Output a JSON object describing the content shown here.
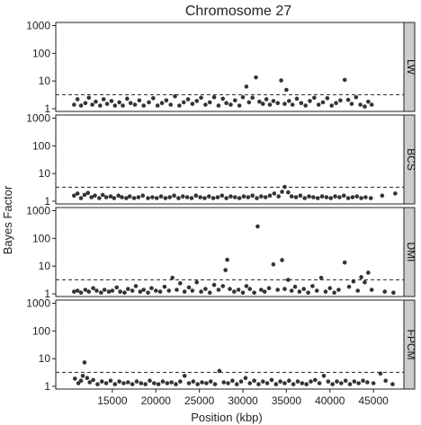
{
  "chart_data": {
    "type": "scatter",
    "title": "Chromosome 27",
    "xlabel": "Position (kbp)",
    "ylabel": "Bayes Factor",
    "y_scale": "log",
    "xlim": [
      8500,
      48500
    ],
    "ylim": [
      0.8,
      1300
    ],
    "x_ticks": [
      15000,
      20000,
      25000,
      30000,
      35000,
      40000,
      45000
    ],
    "y_ticks": [
      1,
      10,
      100,
      1000
    ],
    "threshold": 3.2,
    "grid": false,
    "point_color": "#333333",
    "strip_color": "#cccccc",
    "panels": [
      {
        "name": "LW",
        "points": [
          [
            10600,
            1.4
          ],
          [
            11000,
            2.2
          ],
          [
            11400,
            1.3
          ],
          [
            11900,
            1.6
          ],
          [
            12300,
            2.5
          ],
          [
            12700,
            1.4
          ],
          [
            13100,
            1.8
          ],
          [
            13600,
            1.3
          ],
          [
            14000,
            2.2
          ],
          [
            14400,
            1.5
          ],
          [
            14900,
            1.9
          ],
          [
            15300,
            1.3
          ],
          [
            15800,
            1.7
          ],
          [
            16200,
            1.3
          ],
          [
            16700,
            2.3
          ],
          [
            17100,
            1.6
          ],
          [
            17600,
            1.4
          ],
          [
            18100,
            2.0
          ],
          [
            18600,
            1.3
          ],
          [
            19200,
            1.7
          ],
          [
            19700,
            2.4
          ],
          [
            20200,
            1.3
          ],
          [
            20700,
            1.6
          ],
          [
            21200,
            2.0
          ],
          [
            21700,
            1.4
          ],
          [
            22200,
            2.8
          ],
          [
            22700,
            1.3
          ],
          [
            23200,
            1.7
          ],
          [
            23700,
            2.2
          ],
          [
            24200,
            1.5
          ],
          [
            24700,
            1.9
          ],
          [
            25200,
            2.5
          ],
          [
            25700,
            1.4
          ],
          [
            26200,
            1.7
          ],
          [
            26700,
            2.6
          ],
          [
            27200,
            1.3
          ],
          [
            27700,
            2.3
          ],
          [
            28100,
            1.6
          ],
          [
            28600,
            1.4
          ],
          [
            29100,
            2.0
          ],
          [
            29600,
            1.3
          ],
          [
            30000,
            2.6
          ],
          [
            30400,
            6.3
          ],
          [
            30700,
            1.7
          ],
          [
            31100,
            2.5
          ],
          [
            31500,
            13.5
          ],
          [
            31900,
            1.8
          ],
          [
            32300,
            1.5
          ],
          [
            32700,
            2.2
          ],
          [
            33100,
            1.4
          ],
          [
            33500,
            1.9
          ],
          [
            34000,
            1.6
          ],
          [
            34400,
            10.5
          ],
          [
            34800,
            1.5
          ],
          [
            35000,
            4.8
          ],
          [
            35300,
            1.9
          ],
          [
            35700,
            1.4
          ],
          [
            36200,
            2.3
          ],
          [
            36700,
            1.6
          ],
          [
            37200,
            1.3
          ],
          [
            37700,
            1.9
          ],
          [
            38200,
            2.5
          ],
          [
            38700,
            1.4
          ],
          [
            39200,
            1.7
          ],
          [
            39700,
            2.4
          ],
          [
            40200,
            1.3
          ],
          [
            40700,
            1.6
          ],
          [
            41200,
            2.0
          ],
          [
            41700,
            11.0
          ],
          [
            42100,
            2.1
          ],
          [
            42500,
            1.5
          ],
          [
            43000,
            2.6
          ],
          [
            43500,
            1.4
          ],
          [
            44000,
            1.2
          ],
          [
            44400,
            1.8
          ],
          [
            44800,
            1.4
          ]
        ]
      },
      {
        "name": "BCS",
        "points": [
          [
            10600,
            1.6
          ],
          [
            11000,
            1.9
          ],
          [
            11400,
            1.3
          ],
          [
            11800,
            1.7
          ],
          [
            12200,
            2.0
          ],
          [
            12600,
            1.4
          ],
          [
            13000,
            1.6
          ],
          [
            13500,
            1.3
          ],
          [
            13900,
            1.7
          ],
          [
            14300,
            1.4
          ],
          [
            14800,
            1.5
          ],
          [
            15200,
            1.3
          ],
          [
            15700,
            1.6
          ],
          [
            16100,
            1.4
          ],
          [
            16600,
            1.3
          ],
          [
            17000,
            1.5
          ],
          [
            17500,
            1.3
          ],
          [
            18000,
            1.4
          ],
          [
            18500,
            1.6
          ],
          [
            19100,
            1.3
          ],
          [
            19600,
            1.4
          ],
          [
            20100,
            1.3
          ],
          [
            20600,
            1.5
          ],
          [
            21100,
            1.3
          ],
          [
            21600,
            1.4
          ],
          [
            22100,
            1.6
          ],
          [
            22600,
            1.3
          ],
          [
            23100,
            1.5
          ],
          [
            23600,
            1.4
          ],
          [
            24100,
            1.3
          ],
          [
            24600,
            1.6
          ],
          [
            25100,
            1.4
          ],
          [
            25600,
            1.3
          ],
          [
            26100,
            1.5
          ],
          [
            26600,
            1.3
          ],
          [
            27100,
            1.4
          ],
          [
            27600,
            1.6
          ],
          [
            28100,
            1.3
          ],
          [
            28600,
            1.5
          ],
          [
            29100,
            1.4
          ],
          [
            29600,
            1.3
          ],
          [
            30100,
            1.5
          ],
          [
            30600,
            1.4
          ],
          [
            31100,
            1.6
          ],
          [
            31600,
            1.3
          ],
          [
            32100,
            1.5
          ],
          [
            32600,
            1.4
          ],
          [
            33100,
            1.6
          ],
          [
            33600,
            1.9
          ],
          [
            34100,
            1.5
          ],
          [
            34500,
            2.2
          ],
          [
            34800,
            3.3
          ],
          [
            35200,
            2.1
          ],
          [
            35600,
            1.5
          ],
          [
            36100,
            1.4
          ],
          [
            36600,
            1.6
          ],
          [
            37100,
            1.3
          ],
          [
            37600,
            1.5
          ],
          [
            38100,
            1.4
          ],
          [
            38600,
            1.3
          ],
          [
            39100,
            1.5
          ],
          [
            39600,
            1.4
          ],
          [
            40100,
            1.3
          ],
          [
            40600,
            1.5
          ],
          [
            41100,
            1.4
          ],
          [
            41600,
            1.6
          ],
          [
            42100,
            1.3
          ],
          [
            42600,
            1.4
          ],
          [
            43100,
            1.5
          ],
          [
            43600,
            1.3
          ],
          [
            44100,
            1.4
          ],
          [
            44700,
            1.3
          ],
          [
            46000,
            1.6
          ],
          [
            47500,
            1.9
          ]
        ]
      },
      {
        "name": "DMI",
        "points": [
          [
            10600,
            1.2
          ],
          [
            11000,
            1.3
          ],
          [
            11400,
            1.1
          ],
          [
            11900,
            1.4
          ],
          [
            12300,
            1.2
          ],
          [
            12800,
            1.6
          ],
          [
            13200,
            1.3
          ],
          [
            13700,
            1.1
          ],
          [
            14100,
            1.4
          ],
          [
            14600,
            1.2
          ],
          [
            15000,
            1.3
          ],
          [
            15500,
            1.7
          ],
          [
            15900,
            1.2
          ],
          [
            16400,
            1.1
          ],
          [
            16800,
            1.5
          ],
          [
            17300,
            1.3
          ],
          [
            17700,
            1.9
          ],
          [
            18200,
            1.2
          ],
          [
            18600,
            1.4
          ],
          [
            19100,
            1.1
          ],
          [
            19500,
            1.6
          ],
          [
            20000,
            1.3
          ],
          [
            20500,
            1.2
          ],
          [
            21000,
            1.8
          ],
          [
            21500,
            1.3
          ],
          [
            21900,
            3.8
          ],
          [
            22400,
            1.4
          ],
          [
            22800,
            2.4
          ],
          [
            23300,
            1.2
          ],
          [
            23800,
            1.7
          ],
          [
            24200,
            1.3
          ],
          [
            24700,
            2.6
          ],
          [
            25200,
            1.2
          ],
          [
            25700,
            1.5
          ],
          [
            26200,
            1.1
          ],
          [
            26700,
            2.1
          ],
          [
            27200,
            1.4
          ],
          [
            27700,
            1.9
          ],
          [
            28000,
            7.2
          ],
          [
            28200,
            17.0
          ],
          [
            28500,
            1.5
          ],
          [
            29000,
            1.2
          ],
          [
            29500,
            1.4
          ],
          [
            30000,
            1.1
          ],
          [
            30400,
            1.9
          ],
          [
            30800,
            1.5
          ],
          [
            31300,
            1.1
          ],
          [
            31700,
            270.0
          ],
          [
            32100,
            1.4
          ],
          [
            32500,
            1.2
          ],
          [
            33000,
            1.6
          ],
          [
            33500,
            11.5
          ],
          [
            34000,
            1.4
          ],
          [
            34500,
            16.5
          ],
          [
            34800,
            1.5
          ],
          [
            35200,
            3.2
          ],
          [
            35600,
            1.3
          ],
          [
            36000,
            1.8
          ],
          [
            36500,
            1.2
          ],
          [
            37000,
            1.5
          ],
          [
            37500,
            1.1
          ],
          [
            38000,
            1.9
          ],
          [
            38500,
            1.3
          ],
          [
            39000,
            3.8
          ],
          [
            39500,
            1.2
          ],
          [
            40000,
            1.6
          ],
          [
            40500,
            1.1
          ],
          [
            41000,
            1.4
          ],
          [
            41700,
            13.5
          ],
          [
            42200,
            1.8
          ],
          [
            42700,
            2.8
          ],
          [
            43200,
            1.3
          ],
          [
            43600,
            4.0
          ],
          [
            44000,
            2.6
          ],
          [
            44400,
            5.8
          ],
          [
            44800,
            1.4
          ],
          [
            46300,
            1.2
          ],
          [
            47300,
            1.1
          ]
        ]
      },
      {
        "name": "FPCM",
        "points": [
          [
            10700,
            1.9
          ],
          [
            11100,
            1.3
          ],
          [
            11400,
            1.6
          ],
          [
            11600,
            2.4
          ],
          [
            11800,
            7.3
          ],
          [
            12100,
            2.0
          ],
          [
            12400,
            1.4
          ],
          [
            12800,
            1.7
          ],
          [
            13300,
            1.2
          ],
          [
            13800,
            1.5
          ],
          [
            14300,
            1.3
          ],
          [
            14800,
            1.6
          ],
          [
            15300,
            1.2
          ],
          [
            15800,
            1.5
          ],
          [
            16300,
            1.3
          ],
          [
            16800,
            1.4
          ],
          [
            17300,
            1.2
          ],
          [
            17800,
            1.5
          ],
          [
            18300,
            1.3
          ],
          [
            18800,
            1.2
          ],
          [
            19300,
            1.6
          ],
          [
            19800,
            1.3
          ],
          [
            20300,
            1.2
          ],
          [
            20800,
            1.5
          ],
          [
            21300,
            1.3
          ],
          [
            21800,
            1.4
          ],
          [
            22300,
            1.2
          ],
          [
            22800,
            1.5
          ],
          [
            23300,
            2.4
          ],
          [
            23800,
            1.3
          ],
          [
            24300,
            1.5
          ],
          [
            24800,
            1.2
          ],
          [
            25300,
            1.4
          ],
          [
            25800,
            1.3
          ],
          [
            26300,
            1.5
          ],
          [
            26800,
            1.2
          ],
          [
            27300,
            3.6
          ],
          [
            27800,
            1.4
          ],
          [
            28300,
            1.3
          ],
          [
            28800,
            1.6
          ],
          [
            29300,
            1.2
          ],
          [
            29800,
            1.5
          ],
          [
            30300,
            2.0
          ],
          [
            30800,
            1.3
          ],
          [
            31300,
            1.6
          ],
          [
            31800,
            1.2
          ],
          [
            32300,
            1.5
          ],
          [
            32800,
            1.3
          ],
          [
            33300,
            1.7
          ],
          [
            33800,
            1.2
          ],
          [
            34300,
            1.5
          ],
          [
            34800,
            1.3
          ],
          [
            35300,
            1.6
          ],
          [
            35800,
            1.2
          ],
          [
            36300,
            1.5
          ],
          [
            36800,
            1.3
          ],
          [
            37300,
            1.2
          ],
          [
            37800,
            1.5
          ],
          [
            38300,
            1.7
          ],
          [
            38800,
            1.3
          ],
          [
            39300,
            2.4
          ],
          [
            39800,
            1.5
          ],
          [
            40300,
            1.2
          ],
          [
            40800,
            1.5
          ],
          [
            41300,
            1.3
          ],
          [
            41800,
            1.6
          ],
          [
            42300,
            1.2
          ],
          [
            42800,
            1.5
          ],
          [
            43300,
            1.3
          ],
          [
            43800,
            1.6
          ],
          [
            44300,
            1.4
          ],
          [
            45000,
            1.3
          ],
          [
            45800,
            2.9
          ],
          [
            46400,
            1.6
          ],
          [
            47200,
            1.2
          ]
        ]
      }
    ]
  }
}
